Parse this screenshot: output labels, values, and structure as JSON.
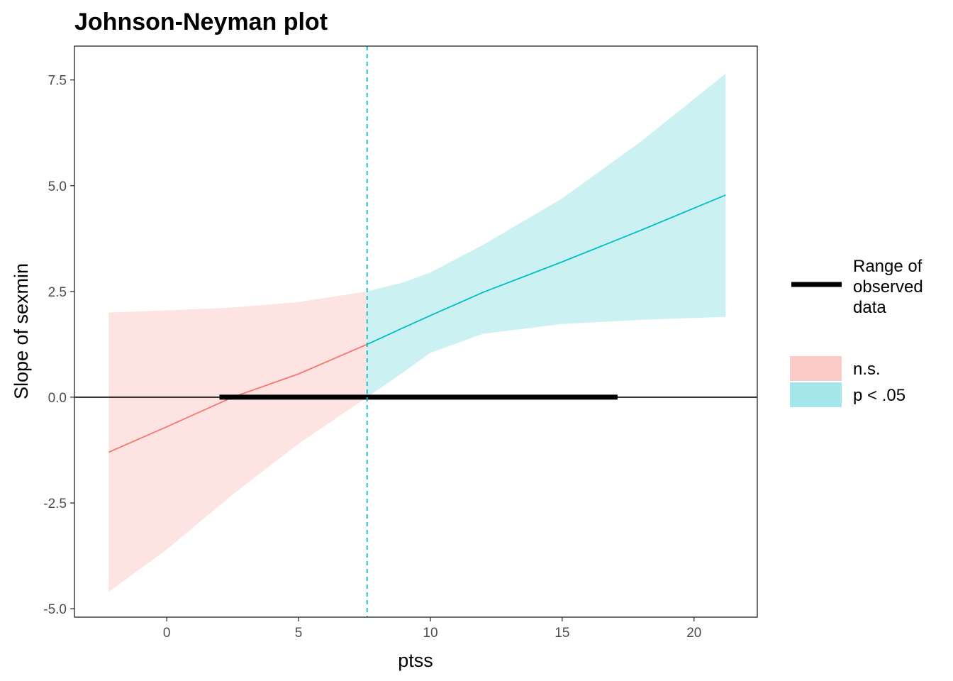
{
  "chart_data": {
    "type": "line",
    "title": "Johnson-Neyman plot",
    "xlabel": "ptss",
    "ylabel": "Slope of sexmin",
    "xlim": [
      -3.5,
      22.4
    ],
    "ylim": [
      -5.2,
      8.3
    ],
    "x_ticks": [
      0,
      5,
      10,
      15,
      20
    ],
    "x_tick_labels": [
      "0",
      "5",
      "10",
      "15",
      "20"
    ],
    "y_ticks": [
      -5,
      -2.5,
      0,
      2.5,
      5,
      7.5
    ],
    "y_tick_labels": [
      "-5.0",
      "-2.5",
      "0.0",
      "2.5",
      "5.0",
      "7.5"
    ],
    "grid": false,
    "jn_point": 7.6,
    "observed_range": [
      2,
      17.1
    ],
    "series": [
      {
        "name": "n.s.",
        "color": "#F8766D",
        "fill": "#FDE3E2",
        "x": [
          -2.2,
          0,
          2.5,
          5,
          7.6
        ],
        "estimate": [
          -1.3,
          -0.7,
          0.0,
          0.55,
          1.25
        ],
        "lower": [
          -4.6,
          -3.6,
          -2.3,
          -1.1,
          0.0
        ],
        "upper": [
          2.0,
          2.05,
          2.12,
          2.25,
          2.5
        ]
      },
      {
        "name": "p < .05",
        "color": "#00BFC4",
        "fill": "#CCF1F2",
        "x": [
          7.6,
          9,
          10,
          12,
          15,
          18,
          21.2
        ],
        "estimate": [
          1.25,
          1.65,
          1.93,
          2.48,
          3.2,
          3.95,
          4.78
        ],
        "lower": [
          0.0,
          0.6,
          1.05,
          1.5,
          1.73,
          1.83,
          1.9
        ],
        "upper": [
          2.5,
          2.72,
          2.95,
          3.6,
          4.7,
          6.05,
          7.65
        ]
      }
    ],
    "legend": {
      "placement": "right",
      "line_label_lines": [
        "Range of",
        "observed",
        "data"
      ],
      "fill_items": [
        {
          "label": "n.s.",
          "color": "#FBCBC8"
        },
        {
          "label": "p < .05",
          "color": "#A3E7EA"
        }
      ]
    }
  }
}
